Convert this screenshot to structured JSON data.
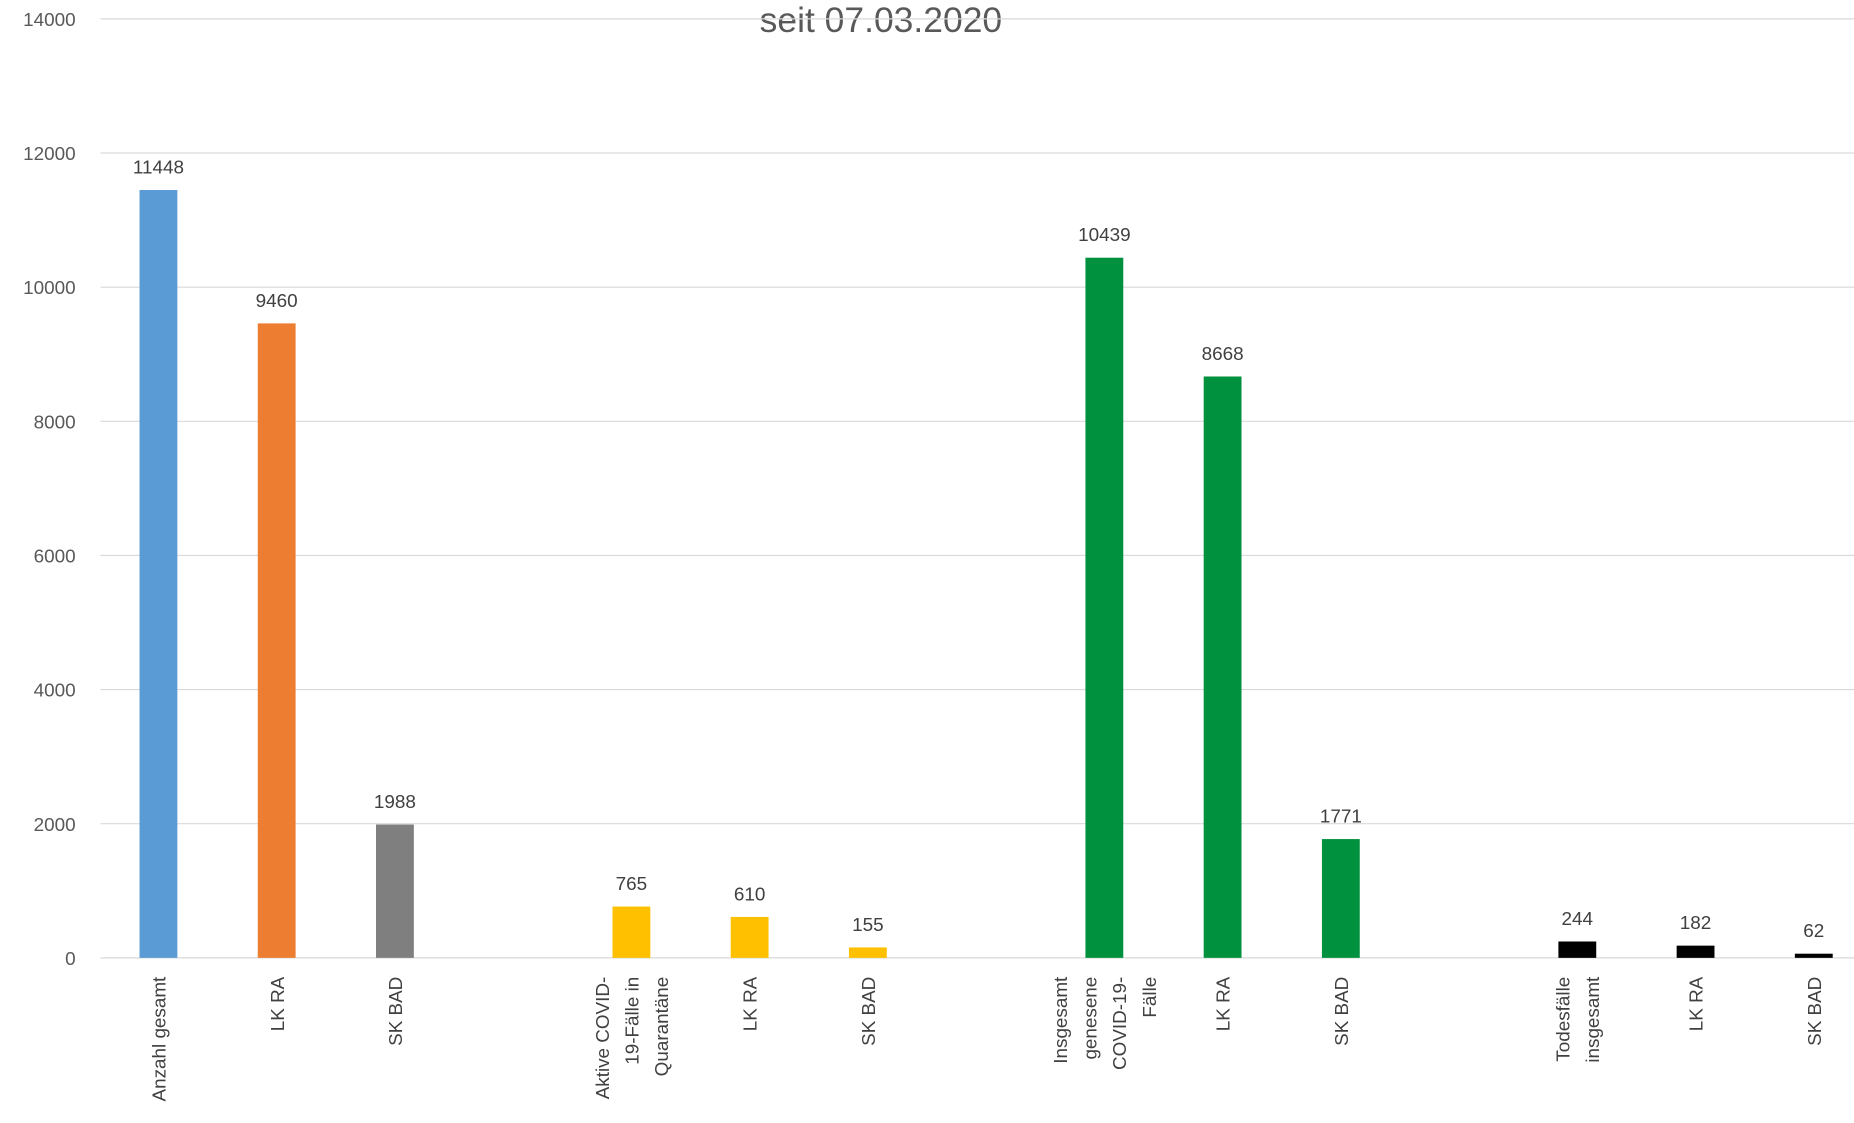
{
  "chart_data": {
    "type": "bar",
    "title": "seit 07.03.2020",
    "categories": [
      "Anzahl gesamt",
      "LK RA",
      "SK BAD",
      null,
      "Aktive COVID-19-Fälle in Quarantäne",
      "LK RA",
      "SK BAD",
      null,
      "Insgesamt genesene COVID-19-Fälle",
      "LK RA",
      "SK BAD",
      null,
      "Todesfälle insgesamt",
      "LK RA",
      "SK BAD"
    ],
    "values": [
      11448,
      9460,
      1988,
      null,
      765,
      610,
      155,
      null,
      10439,
      8668,
      1771,
      null,
      244,
      182,
      62
    ],
    "colors": [
      "#5b9bd5",
      "#ed7d31",
      "#7f7f7f",
      null,
      "#ffc000",
      "#ffc000",
      "#ffc000",
      null,
      "#00913f",
      "#00913f",
      "#00913f",
      null,
      "#000000",
      "#000000",
      "#000000"
    ],
    "ylim": [
      0,
      14000
    ],
    "yticks": [
      0,
      2000,
      4000,
      6000,
      8000,
      10000,
      12000,
      14000
    ],
    "grid": true
  }
}
